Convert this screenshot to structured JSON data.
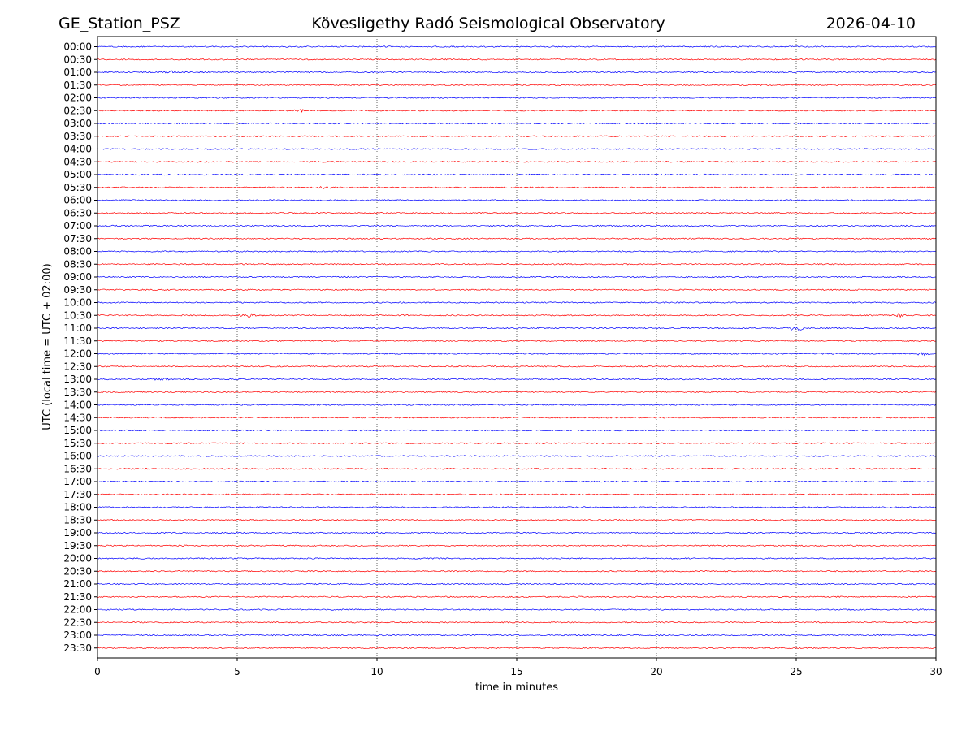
{
  "header": {
    "station": "GE_Station_PSZ",
    "observatory": "Kövesligethy Radó Seismological Observatory",
    "date": "2026-04-10"
  },
  "chart_data": {
    "type": "line",
    "title": "Kövesligethy Radó Seismological Observatory",
    "xlabel": "time in minutes",
    "ylabel": "UTC (local time = UTC + 02:00)",
    "xlim": [
      0,
      30
    ],
    "x_ticks": [
      0,
      5,
      10,
      15,
      20,
      25,
      30
    ],
    "x_tick_labels": [
      "0",
      "5",
      "10",
      "15",
      "20",
      "25",
      "30"
    ],
    "grid": "vertical dotted lines at 5, 10, 15, 20, 25 minutes",
    "legend": "none",
    "trace_colors": [
      "#0000ff",
      "#ff0000"
    ],
    "row_labels": [
      "00:00",
      "00:30",
      "01:00",
      "01:30",
      "02:00",
      "02:30",
      "03:00",
      "03:30",
      "04:00",
      "04:30",
      "05:00",
      "05:30",
      "06:00",
      "06:30",
      "07:00",
      "07:30",
      "08:00",
      "08:30",
      "09:00",
      "09:30",
      "10:00",
      "10:30",
      "11:00",
      "11:30",
      "12:00",
      "12:30",
      "13:00",
      "13:30",
      "14:00",
      "14:30",
      "15:00",
      "15:30",
      "16:00",
      "16:30",
      "17:00",
      "17:30",
      "18:00",
      "18:30",
      "19:00",
      "19:30",
      "20:00",
      "20:30",
      "21:00",
      "21:30",
      "22:00",
      "22:30",
      "23:00",
      "23:30"
    ],
    "events": [
      {
        "row": "01:00",
        "minute": 2.6,
        "amplitude": 1.5
      },
      {
        "row": "02:30",
        "minute": 7.3,
        "amplitude": 1.3
      },
      {
        "row": "05:30",
        "minute": 8.1,
        "amplitude": 1.4
      },
      {
        "row": "10:30",
        "minute": 5.4,
        "amplitude": 2.5
      },
      {
        "row": "10:30",
        "minute": 28.6,
        "amplitude": 2.5
      },
      {
        "row": "11:00",
        "minute": 25.0,
        "amplitude": 3.5
      },
      {
        "row": "12:00",
        "minute": 29.5,
        "amplitude": 1.8
      },
      {
        "row": "13:00",
        "minute": 2.3,
        "amplitude": 1.5
      }
    ]
  }
}
